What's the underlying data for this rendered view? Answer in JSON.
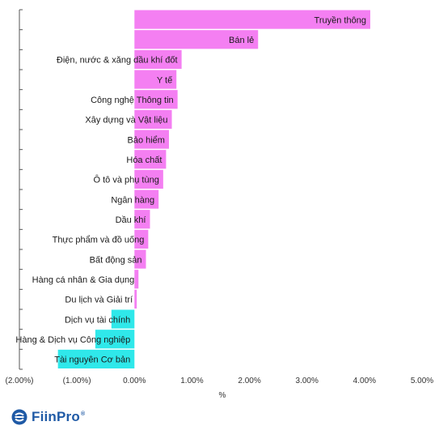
{
  "chart_data": {
    "type": "bar",
    "orientation": "horizontal",
    "categories": [
      "Truyền thông",
      "Bán lẻ",
      "Điện, nước & xăng dầu khí đốt",
      "Y tế",
      "Công nghệ Thông tin",
      "Xây dựng và Vật liệu",
      "Bảo hiểm",
      "Hóa chất",
      "Ô tô và phụ tùng",
      "Ngân hàng",
      "Dầu khí",
      "Thực phẩm và đồ uống",
      "Bất động sản",
      "Hàng cá nhân & Gia dụng",
      "Du lịch và Giải trí",
      "Dịch vụ tài chính",
      "Hàng & Dịch vụ Công nghiệp",
      "Tài nguyên Cơ bản"
    ],
    "values": [
      4.1,
      2.15,
      0.82,
      0.73,
      0.75,
      0.65,
      0.6,
      0.55,
      0.5,
      0.42,
      0.27,
      0.24,
      0.2,
      0.07,
      0.04,
      -0.4,
      -0.68,
      -1.33
    ],
    "xlim": [
      -2,
      5
    ],
    "xticks": [
      -2,
      -1,
      0,
      1,
      2,
      3,
      4,
      5
    ],
    "xtick_labels": [
      "(2.00%)",
      "(1.00%)",
      "0.00%",
      "1.00%",
      "2.00%",
      "3.00%",
      "4.00%",
      "5.00%"
    ],
    "xlabel": "%",
    "ylabel": "",
    "title": "",
    "grid": false,
    "colors": {
      "positive": "#f47ff2",
      "negative": "#2fe8ea",
      "axis": "#555555"
    }
  },
  "branding": {
    "logo_name": "FiinPro",
    "logo_mark": "®",
    "icon": "fiinpro-logo-icon"
  }
}
